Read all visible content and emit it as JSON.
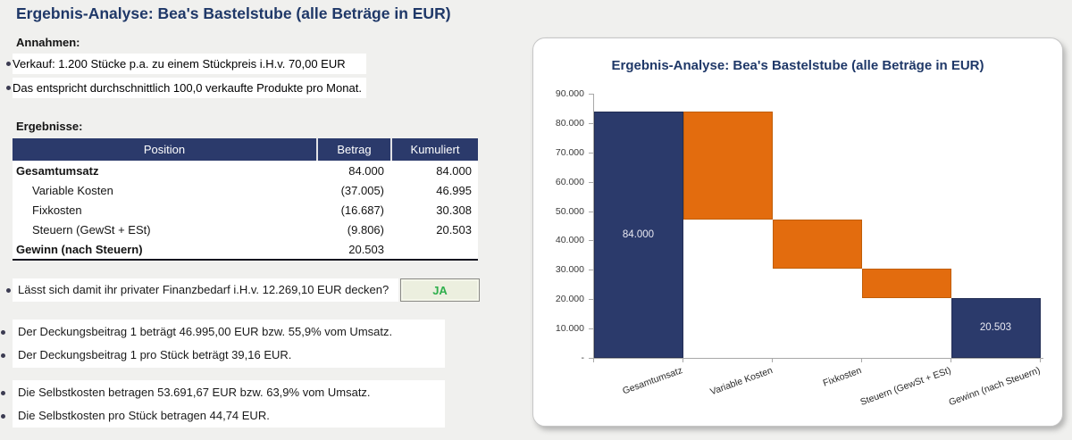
{
  "colors": {
    "page_bg": "#F0F0EE",
    "navy": "#2B3A6B",
    "navy_stroke": "#232E55",
    "orange": "#E36C0E",
    "orange_stroke": "#C05E08",
    "title_navy": "#1F3868",
    "answer_green": "#2FAF4C",
    "answer_bg": "#ECEFDF"
  },
  "header": {
    "title": "Ergebnis-Analyse: Bea's Bastelstube (alle Beträge in EUR)"
  },
  "assumptions": {
    "heading": "Annahmen:",
    "items": [
      "Verkauf: 1.200 Stücke p.a. zu einem Stückpreis i.H.v. 70,00 EUR",
      "Das entspricht durchschnittlich 100,0 verkaufte Produkte pro Monat."
    ]
  },
  "results": {
    "heading": "Ergebnisse:",
    "columns": [
      "Position",
      "Betrag",
      "Kumuliert"
    ],
    "rows": [
      {
        "position": "Gesamtumsatz",
        "betrag": "84.000",
        "kumuliert": "84.000",
        "bold": true,
        "indent": false
      },
      {
        "position": "Variable Kosten",
        "betrag": "(37.005)",
        "kumuliert": "46.995",
        "bold": false,
        "indent": true
      },
      {
        "position": "Fixkosten",
        "betrag": "(16.687)",
        "kumuliert": "30.308",
        "bold": false,
        "indent": true
      },
      {
        "position": "Steuern (GewSt + ESt)",
        "betrag": "(9.806)",
        "kumuliert": "20.503",
        "bold": false,
        "indent": true
      },
      {
        "position": "Gewinn (nach Steuern)",
        "betrag": "20.503",
        "kumuliert": "",
        "bold": true,
        "indent": false
      }
    ]
  },
  "question": {
    "text": "Lässt sich damit ihr privater Finanzbedarf i.H.v. 12.269,10 EUR decken?",
    "answer": "JA"
  },
  "contribution_notes": [
    "Der Deckungsbeitrag 1 beträgt 46.995,00 EUR bzw. 55,9% vom Umsatz.",
    "Der Deckungsbeitrag 1 pro Stück beträgt 39,16 EUR."
  ],
  "cost_notes": [
    "Die Selbstkosten betragen 53.691,67 EUR bzw. 63,9% vom Umsatz.",
    "Die Selbstkosten pro Stück betragen 44,74 EUR."
  ],
  "chart_data": {
    "type": "bar",
    "subtype": "waterfall",
    "title": "Ergebnis-Analyse: Bea's Bastelstube (alle Beträge in EUR)",
    "categories": [
      "Gesamtumsatz",
      "Variable Kosten",
      "Fixkosten",
      "Steuern (GewSt + ESt)",
      "Gewinn (nach Steuern)"
    ],
    "bars": [
      {
        "category": "Gesamtumsatz",
        "value": 84000,
        "from": 0,
        "to": 84000,
        "color": "#2B3A6B",
        "stroke": "#232E55",
        "data_label": "84.000"
      },
      {
        "category": "Variable Kosten",
        "value": -37005,
        "from": 46995,
        "to": 84000,
        "color": "#E36C0E",
        "stroke": "#C05E08",
        "data_label": ""
      },
      {
        "category": "Fixkosten",
        "value": -16687,
        "from": 30308,
        "to": 46995,
        "color": "#E36C0E",
        "stroke": "#C05E08",
        "data_label": ""
      },
      {
        "category": "Steuern (GewSt + ESt)",
        "value": -9806,
        "from": 20503,
        "to": 30308,
        "color": "#E36C0E",
        "stroke": "#C05E08",
        "data_label": ""
      },
      {
        "category": "Gewinn (nach Steuern)",
        "value": 20503,
        "from": 0,
        "to": 20503,
        "color": "#2B3A6B",
        "stroke": "#232E55",
        "data_label": "20.503"
      }
    ],
    "ylim": [
      0,
      90000
    ],
    "y_tick_step": 10000,
    "y_tick_labels": [
      "90.000",
      "80.000",
      "70.000",
      "60.000",
      "50.000",
      "40.000",
      "30.000",
      "20.000",
      "10.000",
      "-"
    ],
    "xlabel": "",
    "ylabel": "",
    "grid": false,
    "legend": false
  }
}
